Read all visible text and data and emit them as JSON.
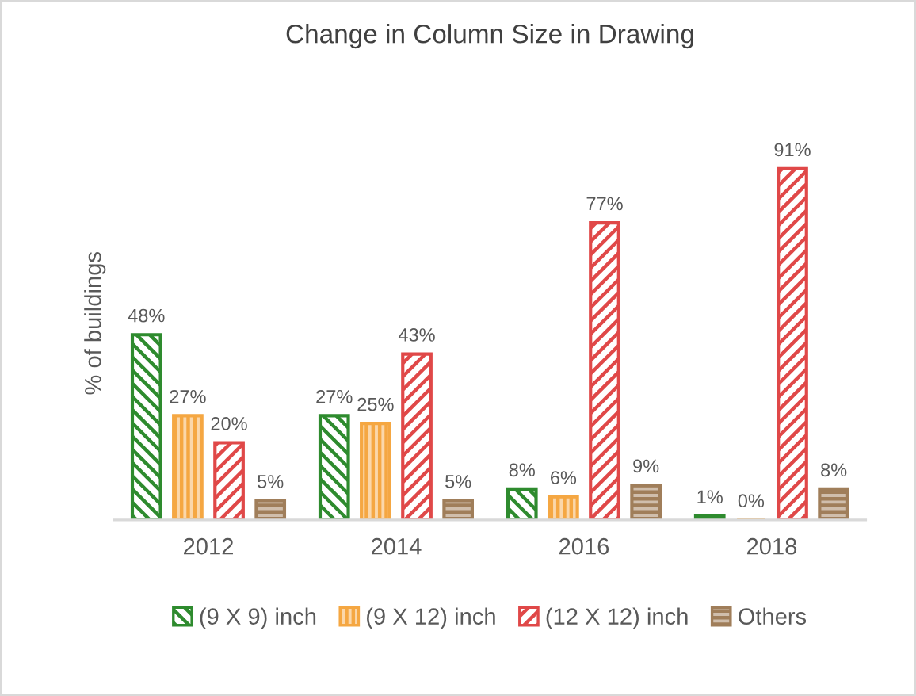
{
  "chart_data": {
    "type": "bar",
    "title": "Change in Column Size in Drawing",
    "ylabel": "% of buildings",
    "categories": [
      "2012",
      "2014",
      "2016",
      "2018"
    ],
    "series": [
      {
        "name": "(9 X 9) inch",
        "color": "#2e8b2e",
        "values": [
          48,
          27,
          8,
          1
        ],
        "value_labels": [
          "48%",
          "27%",
          "8%",
          "1%"
        ]
      },
      {
        "name": "(9 X 12) inch",
        "color": "#f5a742",
        "values": [
          27,
          25,
          6,
          0
        ],
        "value_labels": [
          "27%",
          "25%",
          "6%",
          "0%"
        ]
      },
      {
        "name": "(12 X 12) inch",
        "color": "#e04848",
        "values": [
          20,
          43,
          77,
          91
        ],
        "value_labels": [
          "20%",
          "43%",
          "77%",
          "91%"
        ]
      },
      {
        "name": "Others",
        "color": "#a07e5a",
        "values": [
          5,
          5,
          9,
          8
        ],
        "value_labels": [
          "5%",
          "5%",
          "9%",
          "8%"
        ]
      }
    ],
    "legend": "bottom",
    "grid": false,
    "tick_labels": "x"
  }
}
